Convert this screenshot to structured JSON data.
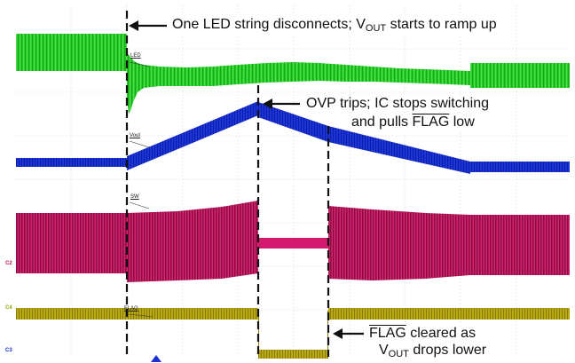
{
  "annotations": {
    "led_disconnect_pre": "One LED string disconnects; V",
    "led_disconnect_sub": "OUT",
    "led_disconnect_post": " starts to ramp up",
    "ovp_line1": "OVP trips; IC stops switching",
    "ovp_line2_pre": "and pulls ",
    "ovp_line2_flag": "FLAG",
    "ovp_line2_post": " low",
    "flag_line1_flag": "FLAG",
    "flag_line1_post": " cleared as",
    "flag_line2_pre": "V",
    "flag_line2_sub": "OUT",
    "flag_line2_post": " drops lower"
  },
  "channels": [
    {
      "tag": "LED",
      "color": "#1fc71f"
    },
    {
      "tag": "Vout",
      "color": "#1a2fd0"
    },
    {
      "tag": "SW",
      "color": "#c4145e"
    },
    {
      "tag": "FLAG",
      "color": "#b3a512"
    }
  ],
  "markers": {
    "c2": {
      "label": "C2",
      "color": "#c4145e"
    },
    "c4": {
      "label": "C4",
      "color": "#8ea800"
    },
    "c3": {
      "label": "C3",
      "color": "#1a2fd0"
    }
  }
}
